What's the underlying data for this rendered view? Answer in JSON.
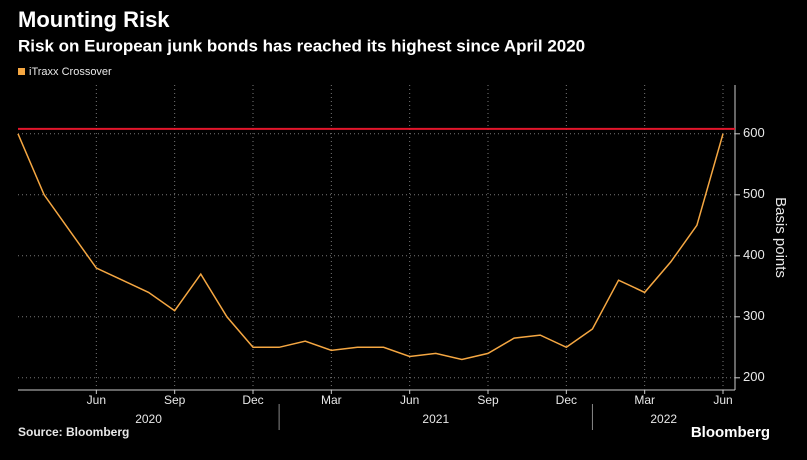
{
  "chart_data": {
    "type": "line",
    "title": "Mounting Risk",
    "subtitle": "Risk on European junk bonds has reached its highest since April 2020",
    "y_axis_label": "Basis points",
    "source": "Source: Bloomberg",
    "brand": "Bloomberg",
    "x": [
      "2020-03",
      "2020-04",
      "2020-05",
      "2020-06",
      "2020-07",
      "2020-08",
      "2020-09",
      "2020-10",
      "2020-11",
      "2020-12",
      "2021-01",
      "2021-02",
      "2021-03",
      "2021-04",
      "2021-05",
      "2021-06",
      "2021-07",
      "2021-08",
      "2021-09",
      "2021-10",
      "2021-11",
      "2021-12",
      "2022-01",
      "2022-02",
      "2022-03",
      "2022-04",
      "2022-05",
      "2022-06"
    ],
    "series": [
      {
        "name": "iTraxx Crossover",
        "color": "#f5a742",
        "values": [
          600,
          500,
          440,
          380,
          360,
          340,
          310,
          370,
          300,
          250,
          250,
          260,
          245,
          250,
          250,
          235,
          240,
          230,
          240,
          265,
          270,
          250,
          280,
          360,
          340,
          390,
          450,
          600
        ]
      }
    ],
    "xlim": [
      "2020-03",
      "2022-06"
    ],
    "xticks": [
      {
        "value": "2020-06",
        "label": "Jun"
      },
      {
        "value": "2020-09",
        "label": "Sep"
      },
      {
        "value": "2020-12",
        "label": "Dec"
      },
      {
        "value": "2021-03",
        "label": "Mar"
      },
      {
        "value": "2021-06",
        "label": "Jun"
      },
      {
        "value": "2021-09",
        "label": "Sep"
      },
      {
        "value": "2021-12",
        "label": "Dec"
      },
      {
        "value": "2022-03",
        "label": "Mar"
      },
      {
        "value": "2022-06",
        "label": "Jun"
      }
    ],
    "x_year_labels": [
      "2020",
      "2021",
      "2022"
    ],
    "ylim": [
      180,
      680
    ],
    "yticks": [
      200,
      300,
      400,
      500,
      600
    ],
    "grid": true,
    "reference_line": {
      "value": 608,
      "color": "#e3162b"
    }
  }
}
